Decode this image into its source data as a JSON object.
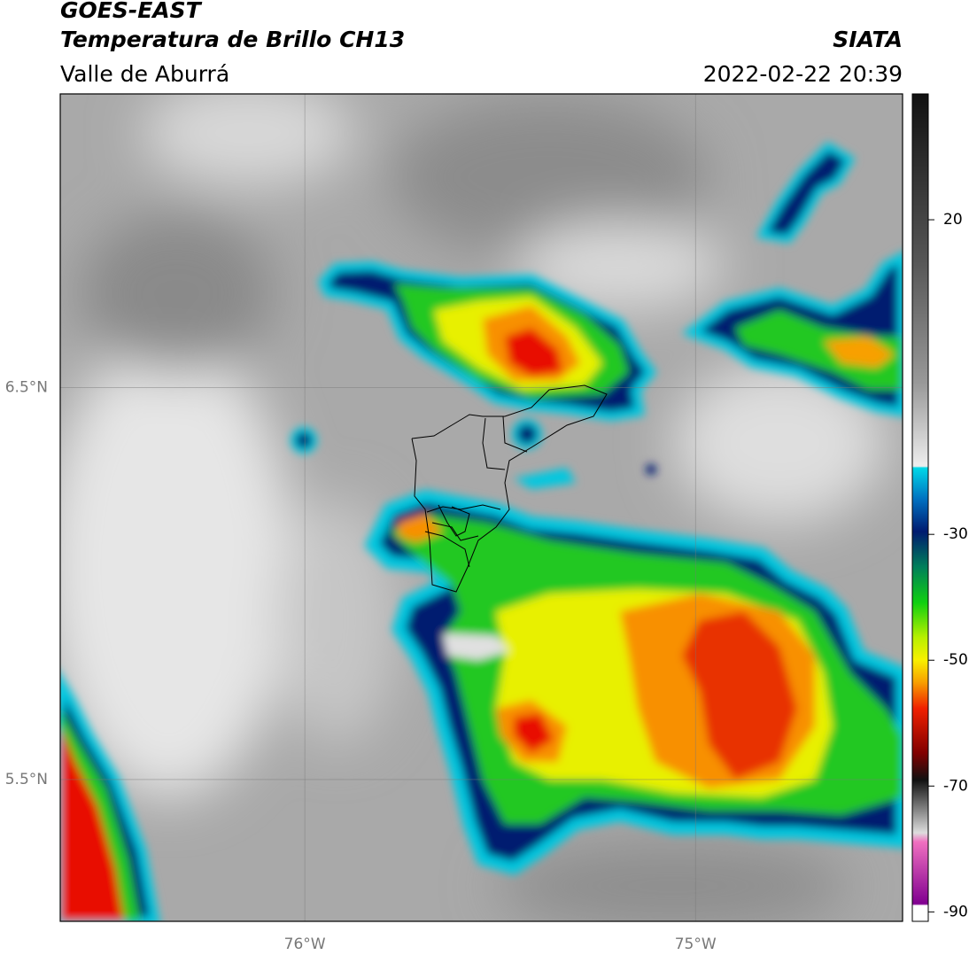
{
  "header": {
    "title": "GOES-EAST",
    "subtitle": "Temperatura de Brillo CH13",
    "region": "Valle de Aburrá",
    "agency": "SIATA",
    "datetime": "2022-02-22 20:39"
  },
  "map": {
    "xlim": [
      -76.626,
      -74.47
    ],
    "ylim": [
      5.138,
      7.25
    ],
    "xticks": [
      {
        "value": -76,
        "label": "76°W"
      },
      {
        "value": -75,
        "label": "75°W"
      }
    ],
    "yticks": [
      {
        "value": 6.5,
        "label": "6.5°N"
      },
      {
        "value": 5.5,
        "label": "5.5°N"
      }
    ],
    "grid": true
  },
  "colorbar": {
    "lim": [
      -91.5,
      40
    ],
    "ticks": [
      20,
      -30,
      -50,
      -70,
      -90
    ]
  }
}
